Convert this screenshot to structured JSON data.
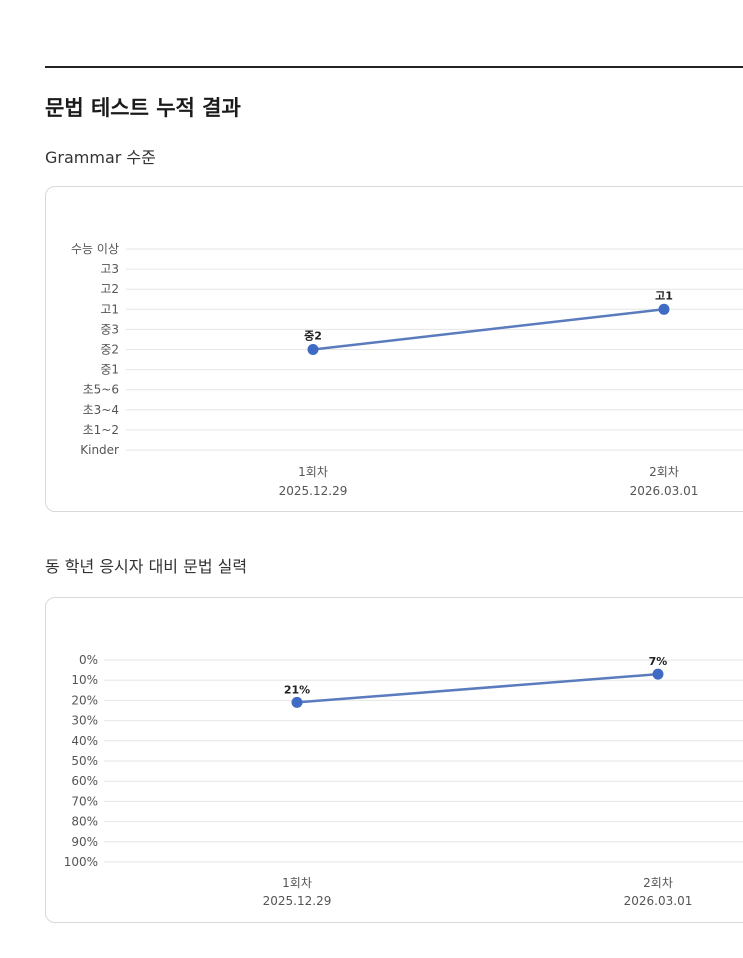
{
  "page": {
    "title": "문법 테스트 누적 결과"
  },
  "sections": [
    {
      "title": "Grammar 수준"
    },
    {
      "title": "동 학년 응시자 대비 문법 실력"
    }
  ],
  "colors": {
    "line": "#5a7bbd",
    "point": "#3f6bc4",
    "grid": "#e6e6e6"
  },
  "chart_data": [
    {
      "type": "line",
      "title": "Grammar 수준",
      "categories": [
        "1회차",
        "2회차"
      ],
      "category_dates": [
        "2025.12.29",
        "2026.03.01"
      ],
      "y_categories": [
        "Kinder",
        "초1~2",
        "초3~4",
        "초5~6",
        "중1",
        "중2",
        "중3",
        "고1",
        "고2",
        "고3",
        "수능 이상"
      ],
      "series": [
        {
          "values": [
            "중2",
            "고1"
          ]
        }
      ],
      "data_labels": [
        "중2",
        "고1"
      ],
      "xlabel": "",
      "ylabel": "",
      "grid": true,
      "legend": "none"
    },
    {
      "type": "line",
      "title": "동 학년 응시자 대비 문법 실력",
      "categories": [
        "1회차",
        "2회차"
      ],
      "category_dates": [
        "2025.12.29",
        "2026.03.01"
      ],
      "y_ticks": [
        "0%",
        "10%",
        "20%",
        "30%",
        "40%",
        "50%",
        "60%",
        "70%",
        "80%",
        "90%",
        "100%"
      ],
      "ylim": [
        0,
        100
      ],
      "y_inverted": true,
      "series": [
        {
          "values": [
            21,
            7
          ]
        }
      ],
      "data_labels": [
        "21%",
        "7%"
      ],
      "xlabel": "",
      "ylabel": "",
      "grid": true,
      "legend": "none"
    }
  ]
}
